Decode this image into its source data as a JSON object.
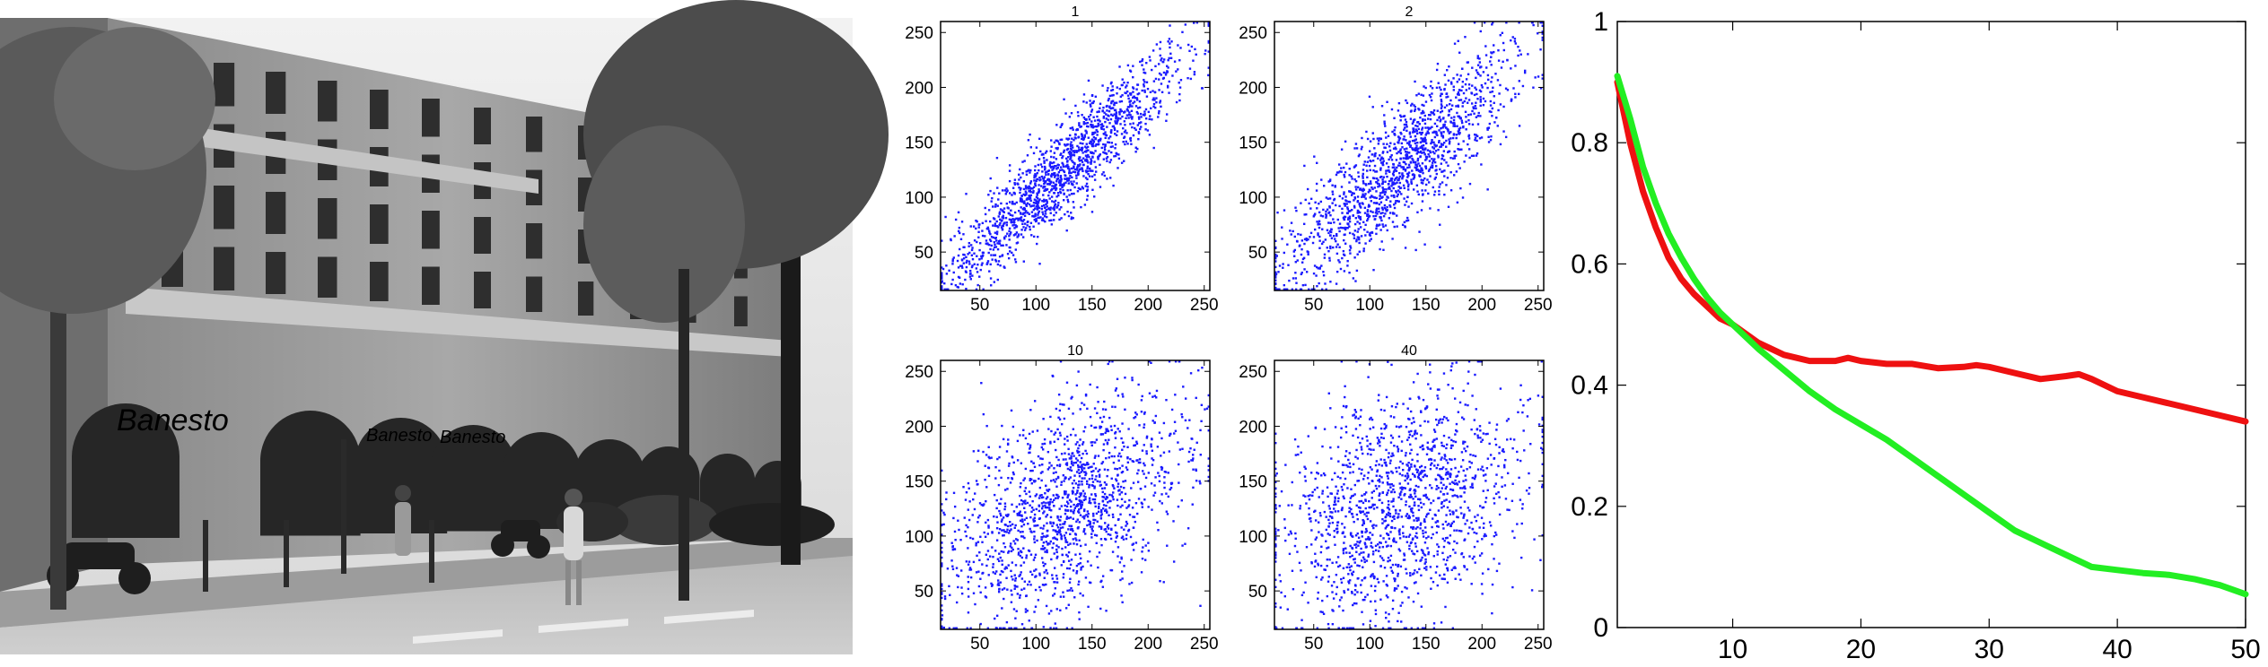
{
  "photo": {
    "sign_text_1": "Banesto",
    "sign_text_2": "Banesto",
    "sign_text_3": "Banesto"
  },
  "colors": {
    "scatter_points": "#1a1aff",
    "red_curve": "#ee1111",
    "green_curve": "#22ee22"
  },
  "chart_data": [
    {
      "type": "scatter",
      "title": "1",
      "xlim": [
        15,
        255
      ],
      "ylim": [
        15,
        260
      ],
      "xticks": [
        50,
        100,
        150,
        200,
        250
      ],
      "yticks": [
        50,
        100,
        150,
        200,
        250
      ],
      "correlation": 0.93,
      "n_points": 1500
    },
    {
      "type": "scatter",
      "title": "2",
      "xlim": [
        15,
        255
      ],
      "ylim": [
        15,
        260
      ],
      "xticks": [
        50,
        100,
        150,
        200,
        250
      ],
      "yticks": [
        50,
        100,
        150,
        200,
        250
      ],
      "correlation": 0.86,
      "n_points": 1500
    },
    {
      "type": "scatter",
      "title": "10",
      "xlim": [
        15,
        255
      ],
      "ylim": [
        15,
        260
      ],
      "xticks": [
        50,
        100,
        150,
        200,
        250
      ],
      "yticks": [
        50,
        100,
        150,
        200,
        250
      ],
      "correlation": 0.5,
      "n_points": 1500
    },
    {
      "type": "scatter",
      "title": "40",
      "xlim": [
        15,
        255
      ],
      "ylim": [
        15,
        260
      ],
      "xticks": [
        50,
        100,
        150,
        200,
        250
      ],
      "yticks": [
        50,
        100,
        150,
        200,
        250
      ],
      "correlation": 0.3,
      "n_points": 1500
    },
    {
      "type": "line",
      "xlim": [
        1,
        50
      ],
      "ylim": [
        0,
        1
      ],
      "xticks": [
        10,
        20,
        30,
        40,
        50
      ],
      "yticks": [
        0,
        0.2,
        0.4,
        0.6,
        0.8,
        1
      ],
      "series": [
        {
          "color": "#ee1111",
          "x": [
            1,
            2,
            3,
            4,
            5,
            6,
            7,
            8,
            9,
            10,
            12,
            14,
            16,
            18,
            19,
            20,
            22,
            24,
            26,
            28,
            29,
            30,
            32,
            34,
            36,
            37,
            38,
            40,
            42,
            44,
            46,
            48,
            50
          ],
          "y": [
            0.9,
            0.8,
            0.72,
            0.66,
            0.61,
            0.575,
            0.55,
            0.53,
            0.51,
            0.5,
            0.47,
            0.45,
            0.44,
            0.44,
            0.445,
            0.44,
            0.435,
            0.435,
            0.428,
            0.43,
            0.433,
            0.43,
            0.42,
            0.41,
            0.415,
            0.418,
            0.41,
            0.39,
            0.38,
            0.37,
            0.36,
            0.35,
            0.34
          ]
        },
        {
          "color": "#22ee22",
          "x": [
            1,
            2,
            3,
            4,
            5,
            6,
            7,
            8,
            9,
            10,
            12,
            14,
            16,
            18,
            20,
            22,
            24,
            26,
            28,
            30,
            32,
            34,
            36,
            38,
            40,
            42,
            44,
            46,
            48,
            50
          ],
          "y": [
            0.91,
            0.84,
            0.76,
            0.7,
            0.65,
            0.61,
            0.575,
            0.545,
            0.52,
            0.5,
            0.46,
            0.425,
            0.39,
            0.36,
            0.335,
            0.31,
            0.28,
            0.25,
            0.22,
            0.19,
            0.16,
            0.14,
            0.12,
            0.1,
            0.095,
            0.09,
            0.087,
            0.08,
            0.07,
            0.055
          ]
        }
      ]
    }
  ]
}
